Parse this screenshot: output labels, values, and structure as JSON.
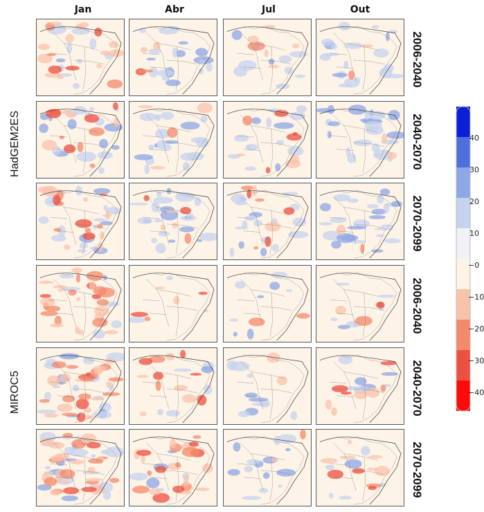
{
  "columns": [
    "Jan",
    "Abr",
    "Jul",
    "Out"
  ],
  "periods": [
    "2006-2040",
    "2040-2070",
    "2070-2099",
    "2006-2040",
    "2040-2070",
    "2070-2099"
  ],
  "models": [
    "HadGEM2ES",
    "MIROC5"
  ],
  "colorbar": {
    "labels": [
      "40",
      "30",
      "20",
      "10",
      "−0",
      "−10",
      "−20",
      "−30",
      "−40"
    ],
    "colors": [
      "#0a1fd6",
      "#4f6fdc",
      "#8ea7e6",
      "#c5d3ef",
      "#f2f2f6",
      "#fdf3e6",
      "#f9c3ab",
      "#f48a6c",
      "#ee5040",
      "#ff0a0a"
    ]
  },
  "panels": [
    [
      {
        "blue": 0.25,
        "red": 0.45
      },
      {
        "blue": 0.45,
        "red": 0.1
      },
      {
        "blue": 0.25,
        "red": 0.15
      },
      {
        "blue": 0.5,
        "red": 0.05
      }
    ],
    [
      {
        "blue": 0.45,
        "red": 0.35
      },
      {
        "blue": 0.5,
        "red": 0.1
      },
      {
        "blue": 0.35,
        "red": 0.2
      },
      {
        "blue": 0.6,
        "red": 0.05
      }
    ],
    [
      {
        "blue": 0.45,
        "red": 0.45
      },
      {
        "blue": 0.55,
        "red": 0.15
      },
      {
        "blue": 0.45,
        "red": 0.2
      },
      {
        "blue": 0.65,
        "red": 0.05
      }
    ],
    [
      {
        "blue": 0.15,
        "red": 0.7
      },
      {
        "blue": 0.05,
        "red": 0.15
      },
      {
        "blue": 0.2,
        "red": 0.05
      },
      {
        "blue": 0.15,
        "red": 0.1
      }
    ],
    [
      {
        "blue": 0.45,
        "red": 0.7
      },
      {
        "blue": 0.15,
        "red": 0.3
      },
      {
        "blue": 0.25,
        "red": 0.05
      },
      {
        "blue": 0.2,
        "red": 0.2
      }
    ],
    [
      {
        "blue": 0.55,
        "red": 0.75
      },
      {
        "blue": 0.15,
        "red": 0.6
      },
      {
        "blue": 0.35,
        "red": 0.05
      },
      {
        "blue": 0.15,
        "red": 0.25
      }
    ]
  ]
}
